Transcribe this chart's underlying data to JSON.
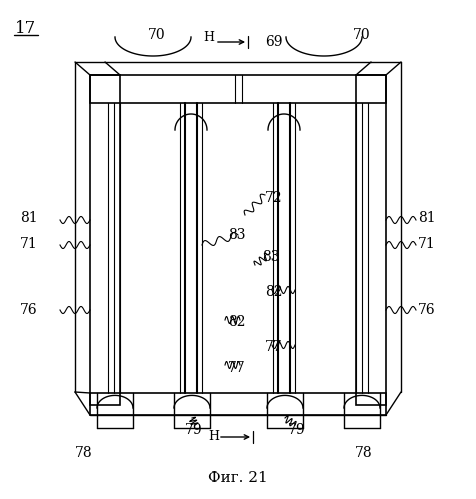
{
  "title": "Фиг. 21",
  "fig_label": "17",
  "background": "#ffffff",
  "lc": "#000000",
  "lw": 1.0
}
